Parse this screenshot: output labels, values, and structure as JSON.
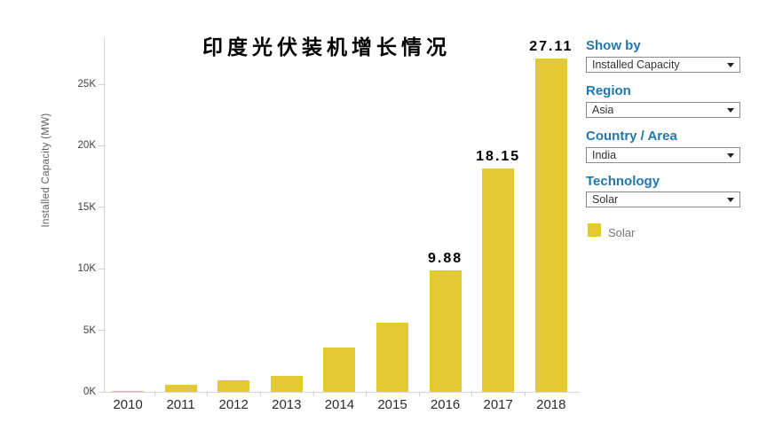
{
  "chart_data": {
    "type": "bar",
    "title": "印度光伏装机增长情况",
    "ylabel": "Installed Capacity (MW)",
    "categories": [
      "2010",
      "2011",
      "2012",
      "2013",
      "2014",
      "2015",
      "2016",
      "2017",
      "2018"
    ],
    "values": [
      65,
      566,
      945,
      1274,
      3593,
      5593,
      9879,
      18152,
      27107
    ],
    "values_unit": "MW",
    "bar_labels": [
      "",
      "",
      "",
      "",
      "",
      "",
      "9.88",
      "18.15",
      "27.11"
    ],
    "y_ticks": [
      "0K",
      "5K",
      "10K",
      "15K",
      "20K",
      "25K"
    ],
    "y_tick_values": [
      0,
      5000,
      10000,
      15000,
      20000,
      25000
    ],
    "ylim": [
      0,
      25000
    ],
    "grid": false,
    "bar_color": "#e3c933",
    "legend_position": "right"
  },
  "controls": [
    {
      "label": "Show by",
      "value": "Installed Capacity"
    },
    {
      "label": "Region",
      "value": "Asia"
    },
    {
      "label": "Country / Area",
      "value": "India"
    },
    {
      "label": "Technology",
      "value": "Solar"
    }
  ],
  "legend": {
    "items": [
      {
        "label": "Solar",
        "color": "#e3c933"
      }
    ]
  },
  "colors": {
    "bar": "#e3c933",
    "heading_blue": "#2178ae",
    "axis_line": "#d6d6d6",
    "value_label": "#000000"
  }
}
